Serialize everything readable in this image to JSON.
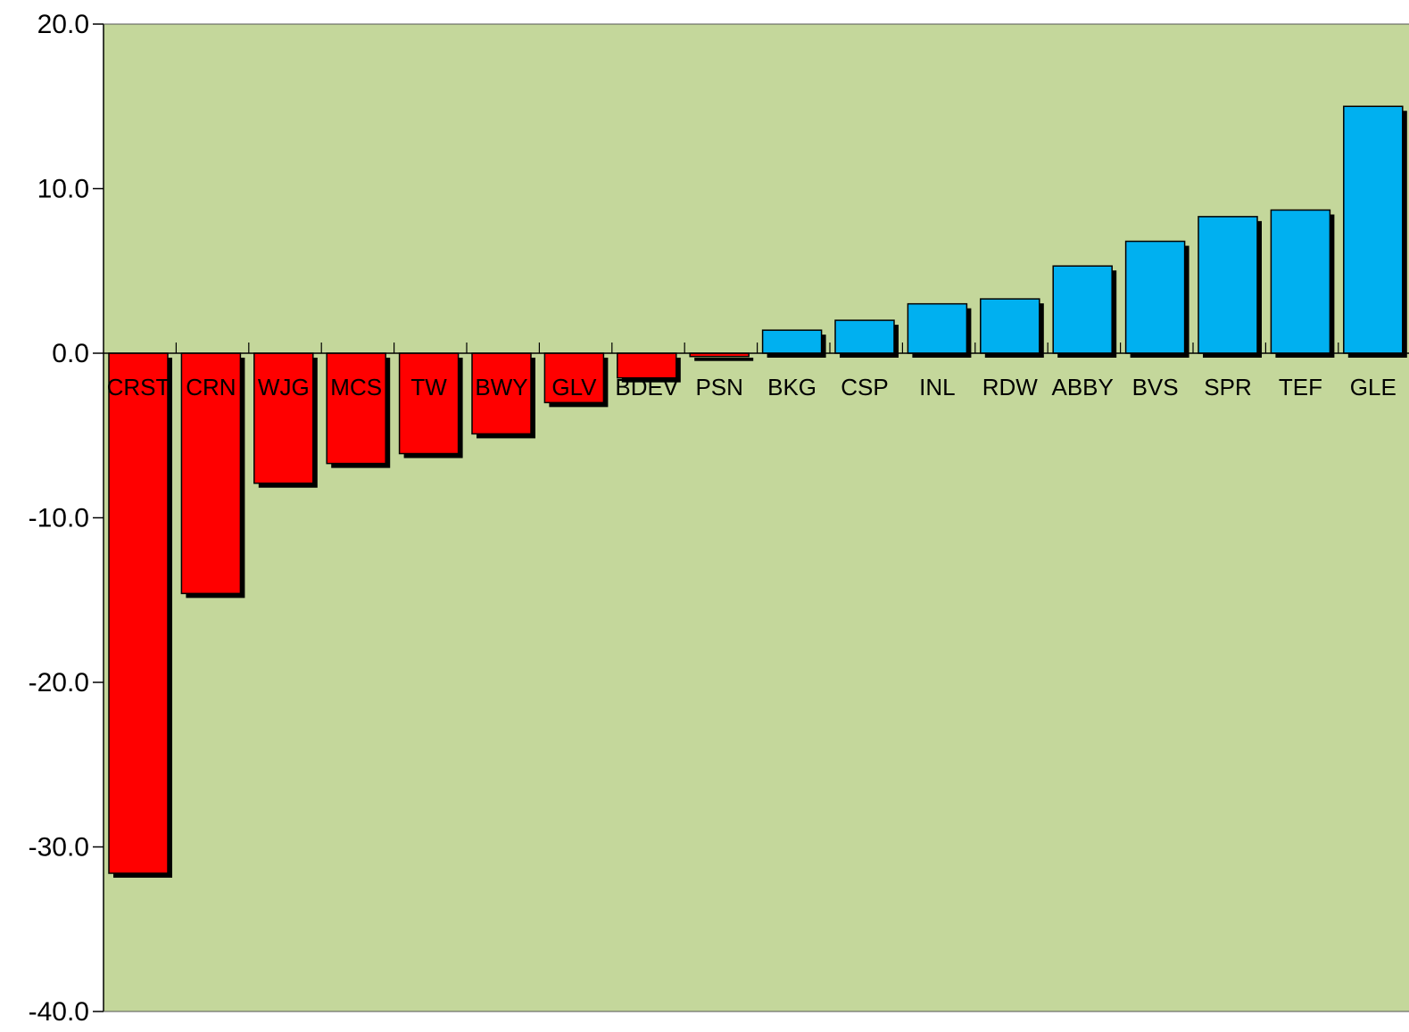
{
  "chart_data": {
    "type": "bar",
    "categories": [
      "CRST",
      "CRN",
      "WJG",
      "MCS",
      "TW",
      "BWY",
      "GLV",
      "BDEV",
      "PSN",
      "BKG",
      "CSP",
      "INL",
      "RDW",
      "ABBY",
      "BVS",
      "SPR",
      "TEF",
      "GLE"
    ],
    "values": [
      -31.6,
      -14.6,
      -7.9,
      -6.7,
      -6.1,
      -4.9,
      -3.0,
      -1.5,
      -0.2,
      1.4,
      2.0,
      3.0,
      3.3,
      5.3,
      6.8,
      8.3,
      8.7,
      15.0
    ],
    "ylim": [
      -40,
      20
    ],
    "yticks": [
      "20.0",
      "10.0",
      "0.0",
      "-10.0",
      "-20.0",
      "-30.0",
      "-40.0"
    ],
    "grid": false,
    "colors": {
      "plot_background": "#c4d79b",
      "negative_bar": "#ff0000",
      "positive_bar": "#00b0f0",
      "shadow": "#000000"
    }
  }
}
